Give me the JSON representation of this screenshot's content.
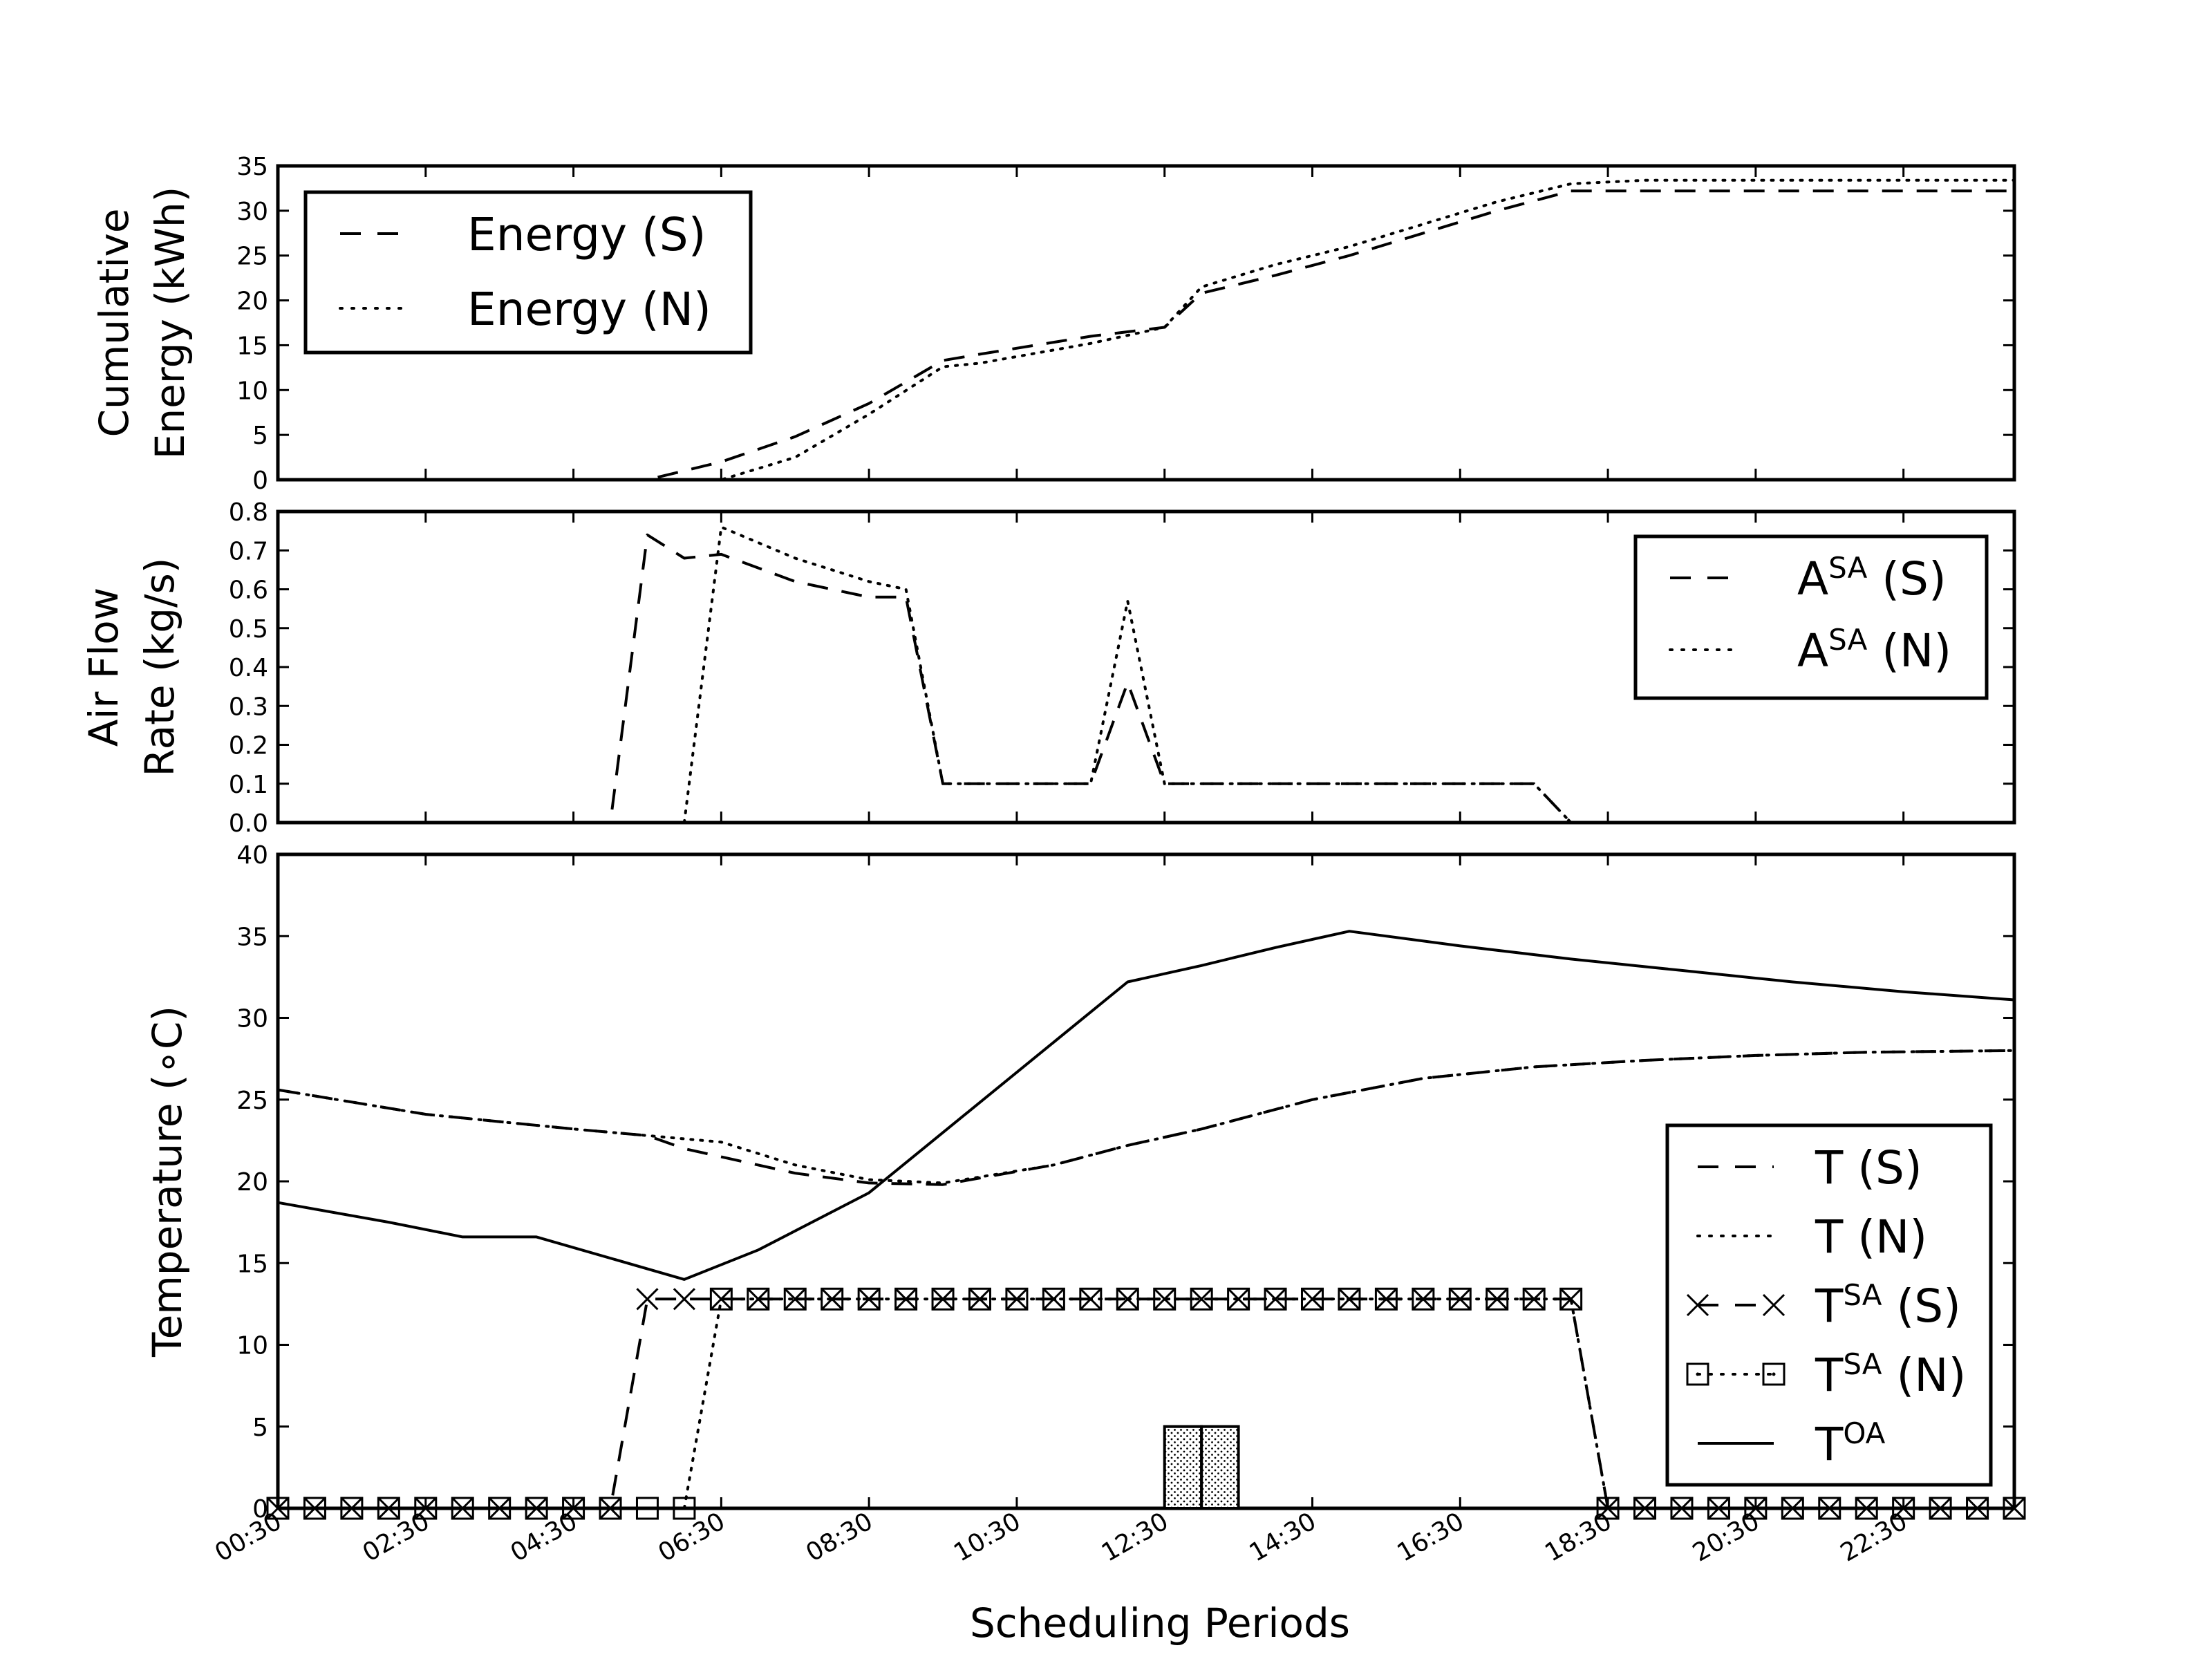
{
  "chart_data": [
    {
      "type": "line",
      "ylabel": [
        "Cumulative",
        "Energy (kWh)"
      ],
      "ylim": [
        0,
        35
      ],
      "yticks": [
        0,
        5,
        10,
        15,
        20,
        25,
        30,
        35
      ],
      "xlim": [
        0.5,
        24
      ],
      "grid": false,
      "legend_position": "top-left",
      "series": [
        {
          "name": "Energy (S)",
          "style": "dashed",
          "x": [
            0.5,
            5.5,
            6.5,
            7.5,
            8.5,
            9.5,
            10,
            11.5,
            12.5,
            13,
            14,
            15,
            16,
            17,
            18,
            19,
            24
          ],
          "y": [
            0,
            0,
            2,
            4.8,
            8.5,
            13.3,
            14,
            16,
            17,
            20.8,
            22.8,
            25,
            27.5,
            30,
            32.2,
            32.2,
            32.2
          ]
        },
        {
          "name": "Energy (N)",
          "style": "dotted",
          "x": [
            0.5,
            6.5,
            7.5,
            8.5,
            9.5,
            10,
            11.5,
            12.5,
            13,
            14,
            15,
            16,
            17,
            18,
            19,
            24
          ],
          "y": [
            0,
            0,
            2.5,
            7.3,
            12.6,
            13,
            15.2,
            17,
            21.5,
            24,
            26,
            28.5,
            31,
            33,
            33.4,
            33.4
          ]
        }
      ]
    },
    {
      "type": "line",
      "ylabel": [
        "Air Flow",
        "Rate (kg/s)"
      ],
      "ylim": [
        0,
        0.8
      ],
      "yticks": [
        "0.0",
        "0.1",
        "0.2",
        "0.3",
        "0.4",
        "0.5",
        "0.6",
        "0.7",
        "0.8"
      ],
      "xlim": [
        0.5,
        24
      ],
      "grid": false,
      "legend_position": "top-right",
      "series": [
        {
          "name_base": "A",
          "name_sup": "SA",
          "name_suffix": "(S)",
          "style": "dashed",
          "x": [
            0.5,
            5,
            5.5,
            6,
            6.5,
            7.5,
            8.5,
            9,
            9.5,
            11.5,
            12,
            12.5,
            17.5,
            18,
            24
          ],
          "y": [
            0,
            0,
            0.74,
            0.68,
            0.69,
            0.62,
            0.58,
            0.58,
            0.1,
            0.1,
            0.36,
            0.1,
            0.1,
            0,
            0
          ]
        },
        {
          "name_base": "A",
          "name_sup": "SA",
          "name_suffix": "(N)",
          "style": "dotted",
          "x": [
            0.5,
            6,
            6.5,
            7.5,
            8.5,
            9,
            9.5,
            11.5,
            12,
            12.5,
            17.5,
            18,
            24
          ],
          "y": [
            0,
            0,
            0.76,
            0.68,
            0.62,
            0.6,
            0.1,
            0.1,
            0.57,
            0.1,
            0.1,
            0,
            0
          ]
        }
      ]
    },
    {
      "type": "line",
      "xlabel": "Scheduling Periods",
      "ylabel": [
        "Temperature (∘C)"
      ],
      "ylim": [
        0,
        40
      ],
      "yticks": [
        0,
        5,
        10,
        15,
        20,
        25,
        30,
        35,
        40
      ],
      "xlim": [
        0.5,
        24
      ],
      "xtick_labels": [
        "00:30",
        "02:30",
        "04:30",
        "06:30",
        "08:30",
        "10:30",
        "12:30",
        "14:30",
        "16:30",
        "18:30",
        "20:30",
        "22:30"
      ],
      "xtick_values": [
        0.5,
        2.5,
        4.5,
        6.5,
        8.5,
        10.5,
        12.5,
        14.5,
        16.5,
        18.5,
        20.5,
        22.5
      ],
      "grid": false,
      "legend_position": "bottom-right",
      "series": [
        {
          "name": "T (S)",
          "style": "dashed",
          "x": [
            0.5,
            2.5,
            4.5,
            5.5,
            6,
            7.5,
            8.5,
            9.5,
            11,
            12,
            13,
            14.5,
            16,
            17.5,
            19,
            20.5,
            22,
            24
          ],
          "y": [
            25.6,
            24.1,
            23.2,
            22.8,
            22.0,
            20.5,
            19.9,
            19.8,
            21.0,
            22.2,
            23.2,
            25.0,
            26.3,
            27.0,
            27.4,
            27.7,
            27.9,
            28.0
          ]
        },
        {
          "name": "T (N)",
          "style": "dotted",
          "x": [
            0.5,
            2.5,
            4.5,
            5.5,
            6.5,
            7.5,
            8.5,
            9.5,
            11,
            12,
            13,
            14.5,
            16,
            17.5,
            19,
            20.5,
            22,
            24
          ],
          "y": [
            25.6,
            24.1,
            23.2,
            22.8,
            22.4,
            21.0,
            20.1,
            19.9,
            21.0,
            22.2,
            23.2,
            25.0,
            26.3,
            27.0,
            27.4,
            27.7,
            27.9,
            28.0
          ]
        },
        {
          "name_base": "T",
          "name_sup": "SA",
          "name_suffix": "(S)",
          "style": "dashed",
          "marker": "x",
          "x": [
            0.5,
            1,
            1.5,
            2,
            2.5,
            3,
            3.5,
            4,
            4.5,
            5,
            5.5,
            6,
            6.5,
            7,
            7.5,
            8,
            8.5,
            9,
            9.5,
            10,
            10.5,
            11,
            11.5,
            12,
            12.5,
            13,
            13.5,
            14,
            14.5,
            15,
            15.5,
            16,
            16.5,
            17,
            17.5,
            18,
            18.5,
            19,
            19.5,
            20,
            20.5,
            21,
            21.5,
            22,
            22.5,
            23,
            23.5,
            24
          ],
          "y": [
            0,
            0,
            0,
            0,
            0,
            0,
            0,
            0,
            0,
            0,
            12.8,
            12.8,
            12.8,
            12.8,
            12.8,
            12.8,
            12.8,
            12.8,
            12.8,
            12.8,
            12.8,
            12.8,
            12.8,
            12.8,
            12.8,
            12.8,
            12.8,
            12.8,
            12.8,
            12.8,
            12.8,
            12.8,
            12.8,
            12.8,
            12.8,
            12.8,
            0,
            0,
            0,
            0,
            0,
            0,
            0,
            0,
            0,
            0,
            0,
            0
          ]
        },
        {
          "name_base": "T",
          "name_sup": "SA",
          "name_suffix": "(N)",
          "style": "dotted",
          "marker": "square-dot",
          "x": [
            0.5,
            1,
            1.5,
            2,
            2.5,
            3,
            3.5,
            4,
            4.5,
            5,
            5.5,
            6,
            6.5,
            7,
            7.5,
            8,
            8.5,
            9,
            9.5,
            10,
            10.5,
            11,
            11.5,
            12,
            12.5,
            13,
            13.5,
            14,
            14.5,
            15,
            15.5,
            16,
            16.5,
            17,
            17.5,
            18,
            18.5,
            19,
            19.5,
            20,
            20.5,
            21,
            21.5,
            22,
            22.5,
            23,
            23.5,
            24
          ],
          "y": [
            0,
            0,
            0,
            0,
            0,
            0,
            0,
            0,
            0,
            0,
            0,
            0,
            12.8,
            12.8,
            12.8,
            12.8,
            12.8,
            12.8,
            12.8,
            12.8,
            12.8,
            12.8,
            12.8,
            12.8,
            12.8,
            12.8,
            12.8,
            12.8,
            12.8,
            12.8,
            12.8,
            12.8,
            12.8,
            12.8,
            12.8,
            12.8,
            0,
            0,
            0,
            0,
            0,
            0,
            0,
            0,
            0,
            0,
            0,
            0
          ]
        },
        {
          "name_base": "T",
          "name_sup": "OA",
          "name_suffix": "",
          "style": "solid",
          "x": [
            0.5,
            2,
            3,
            4,
            6,
            7,
            8.5,
            12,
            13,
            14,
            15,
            16.5,
            18,
            19.5,
            21,
            22.5,
            24
          ],
          "y": [
            18.7,
            17.5,
            16.6,
            16.6,
            14.0,
            15.8,
            19.3,
            32.2,
            33.2,
            34.3,
            35.3,
            34.4,
            33.6,
            32.9,
            32.2,
            31.6,
            31.1
          ]
        }
      ],
      "bars": {
        "style": "dotted-fill",
        "x": [
          12.75,
          13.25
        ],
        "width": 0.5,
        "y": [
          5,
          5
        ]
      }
    }
  ]
}
